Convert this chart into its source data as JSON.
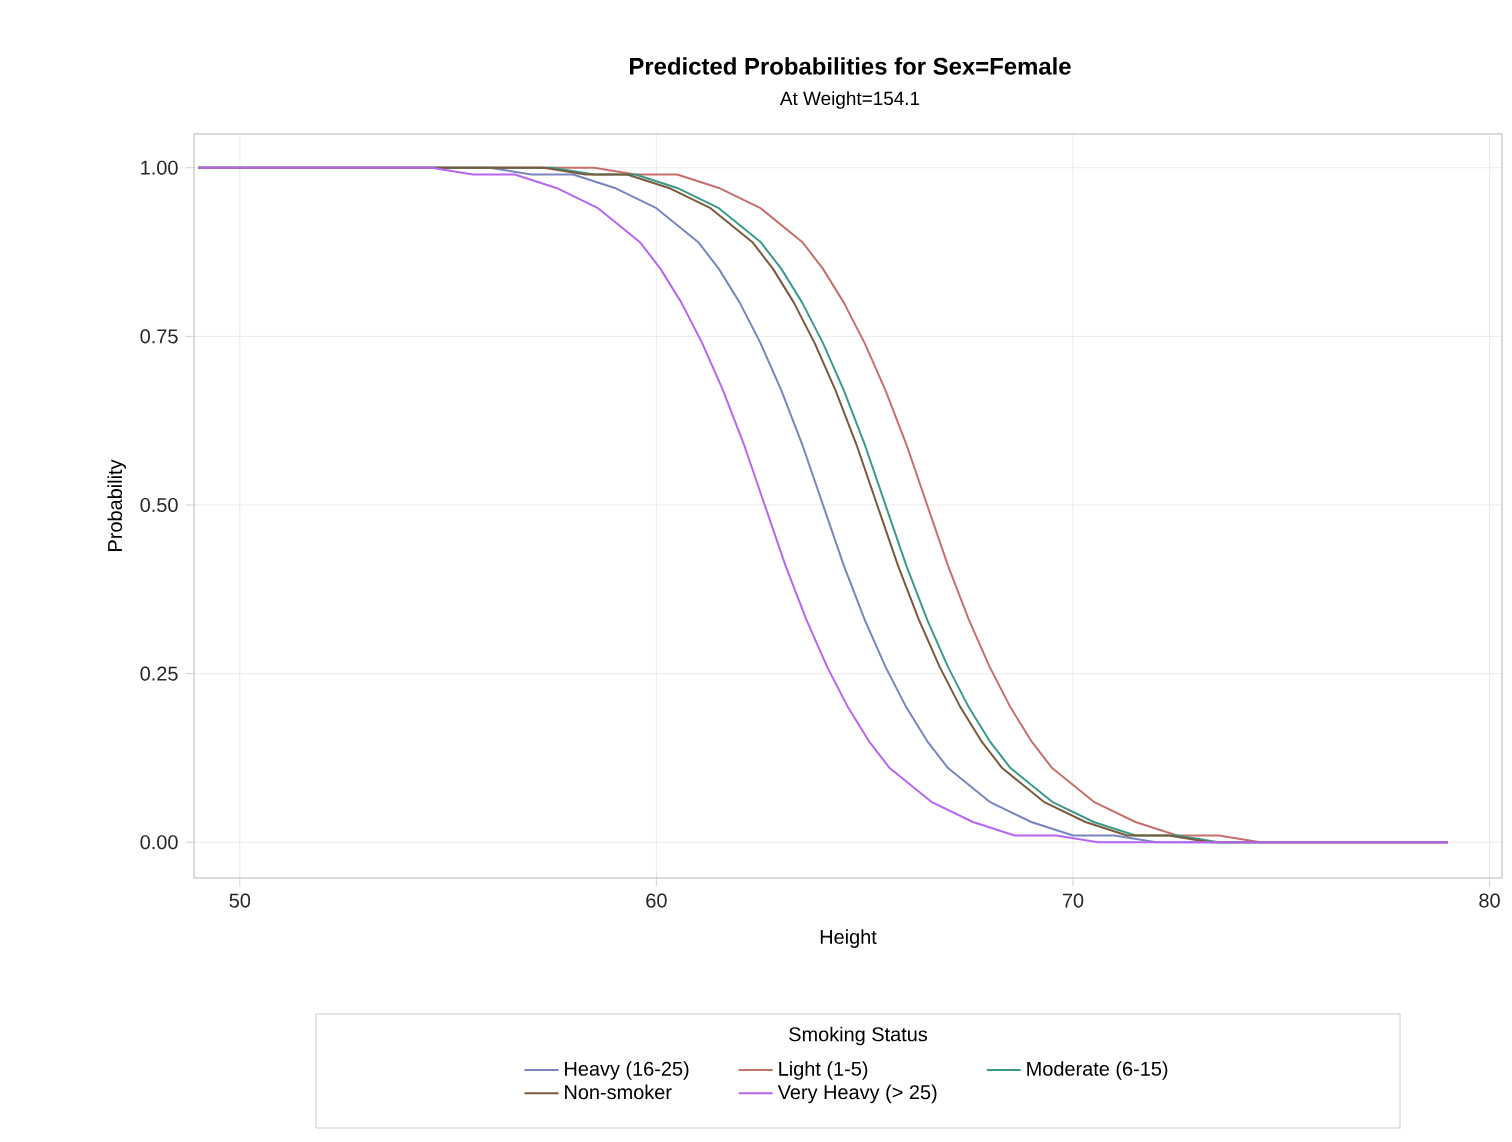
{
  "chart_data": {
    "type": "line",
    "title": "Predicted Probabilities for Sex=Female",
    "subtitle": "At Weight=154.1",
    "xlabel": "Height",
    "ylabel": "Probability",
    "legend_title": "Smoking Status",
    "xlim": [
      48.9,
      80.3
    ],
    "ylim": [
      -0.053,
      1.05
    ],
    "xticks": [
      50,
      60,
      70,
      80
    ],
    "yticks": [
      {
        "value": 0,
        "label": "0.00"
      },
      {
        "value": 0.25,
        "label": "0.25"
      },
      {
        "value": 0.5,
        "label": "0.50"
      },
      {
        "value": 0.75,
        "label": "0.75"
      },
      {
        "value": 1,
        "label": "1.00"
      }
    ],
    "grid": true,
    "legend": "bottom",
    "series": [
      {
        "name": "Heavy (16-25)",
        "color": "#7985c0",
        "x": [
          49,
          56,
          57,
          58,
          59,
          60,
          61,
          61.5,
          62,
          62.5,
          63,
          63.5,
          64,
          64.5,
          65,
          65.5,
          66,
          66.5,
          67,
          68,
          69,
          70,
          71,
          72,
          79
        ],
        "values": [
          1.0,
          1.0,
          0.99,
          0.99,
          0.97,
          0.94,
          0.89,
          0.85,
          0.8,
          0.74,
          0.67,
          0.59,
          0.5,
          0.41,
          0.33,
          0.26,
          0.2,
          0.15,
          0.11,
          0.06,
          0.03,
          0.01,
          0.01,
          0.0,
          0.0
        ]
      },
      {
        "name": "Light (1-5)",
        "color": "#c7706b",
        "x": [
          49,
          58.5,
          59.5,
          60.5,
          61.5,
          62.5,
          63.5,
          64,
          64.5,
          65,
          65.5,
          66,
          66.5,
          67,
          67.5,
          68,
          68.5,
          69,
          69.5,
          70.5,
          71.5,
          72.5,
          73.5,
          74.5,
          79
        ],
        "values": [
          1.0,
          1.0,
          0.99,
          0.99,
          0.97,
          0.94,
          0.89,
          0.85,
          0.8,
          0.74,
          0.67,
          0.59,
          0.5,
          0.41,
          0.33,
          0.26,
          0.2,
          0.15,
          0.11,
          0.06,
          0.03,
          0.01,
          0.01,
          0.0,
          0.0
        ]
      },
      {
        "name": "Moderate (6-15)",
        "color": "#3a9a8c",
        "x": [
          49,
          57.5,
          58.5,
          59.5,
          60.5,
          61.5,
          62.5,
          63,
          63.5,
          64,
          64.5,
          65,
          65.5,
          66,
          66.5,
          67,
          67.5,
          68,
          68.5,
          69.5,
          70.5,
          71.5,
          72.5,
          73.5,
          79
        ],
        "values": [
          1.0,
          1.0,
          0.99,
          0.99,
          0.97,
          0.94,
          0.89,
          0.85,
          0.8,
          0.74,
          0.67,
          0.59,
          0.5,
          0.41,
          0.33,
          0.26,
          0.2,
          0.15,
          0.11,
          0.06,
          0.03,
          0.01,
          0.01,
          0.0,
          0.0
        ]
      },
      {
        "name": "Non-smoker",
        "color": "#7a5a3a",
        "x": [
          49,
          57.3,
          58.3,
          59.3,
          60.3,
          61.3,
          62.3,
          62.8,
          63.3,
          63.8,
          64.3,
          64.8,
          65.3,
          65.8,
          66.3,
          66.8,
          67.3,
          67.8,
          68.3,
          69.3,
          70.3,
          71.3,
          72.3,
          73.3,
          79
        ],
        "values": [
          1.0,
          1.0,
          0.99,
          0.99,
          0.97,
          0.94,
          0.89,
          0.85,
          0.8,
          0.74,
          0.67,
          0.59,
          0.5,
          0.41,
          0.33,
          0.26,
          0.2,
          0.15,
          0.11,
          0.06,
          0.03,
          0.01,
          0.01,
          0.0,
          0.0
        ]
      },
      {
        "name": "Very Heavy (> 25)",
        "color": "#b866f0",
        "x": [
          49,
          54.6,
          55.6,
          56.6,
          57.6,
          58.6,
          59.6,
          60.1,
          60.6,
          61.1,
          61.6,
          62.1,
          62.6,
          63.1,
          63.6,
          64.1,
          64.6,
          65.1,
          65.6,
          66.6,
          67.6,
          68.6,
          69.6,
          70.6,
          79
        ],
        "values": [
          1.0,
          1.0,
          0.99,
          0.99,
          0.97,
          0.94,
          0.89,
          0.85,
          0.8,
          0.74,
          0.67,
          0.59,
          0.5,
          0.41,
          0.33,
          0.26,
          0.2,
          0.15,
          0.11,
          0.06,
          0.03,
          0.01,
          0.01,
          0.0,
          0.0
        ]
      }
    ]
  }
}
